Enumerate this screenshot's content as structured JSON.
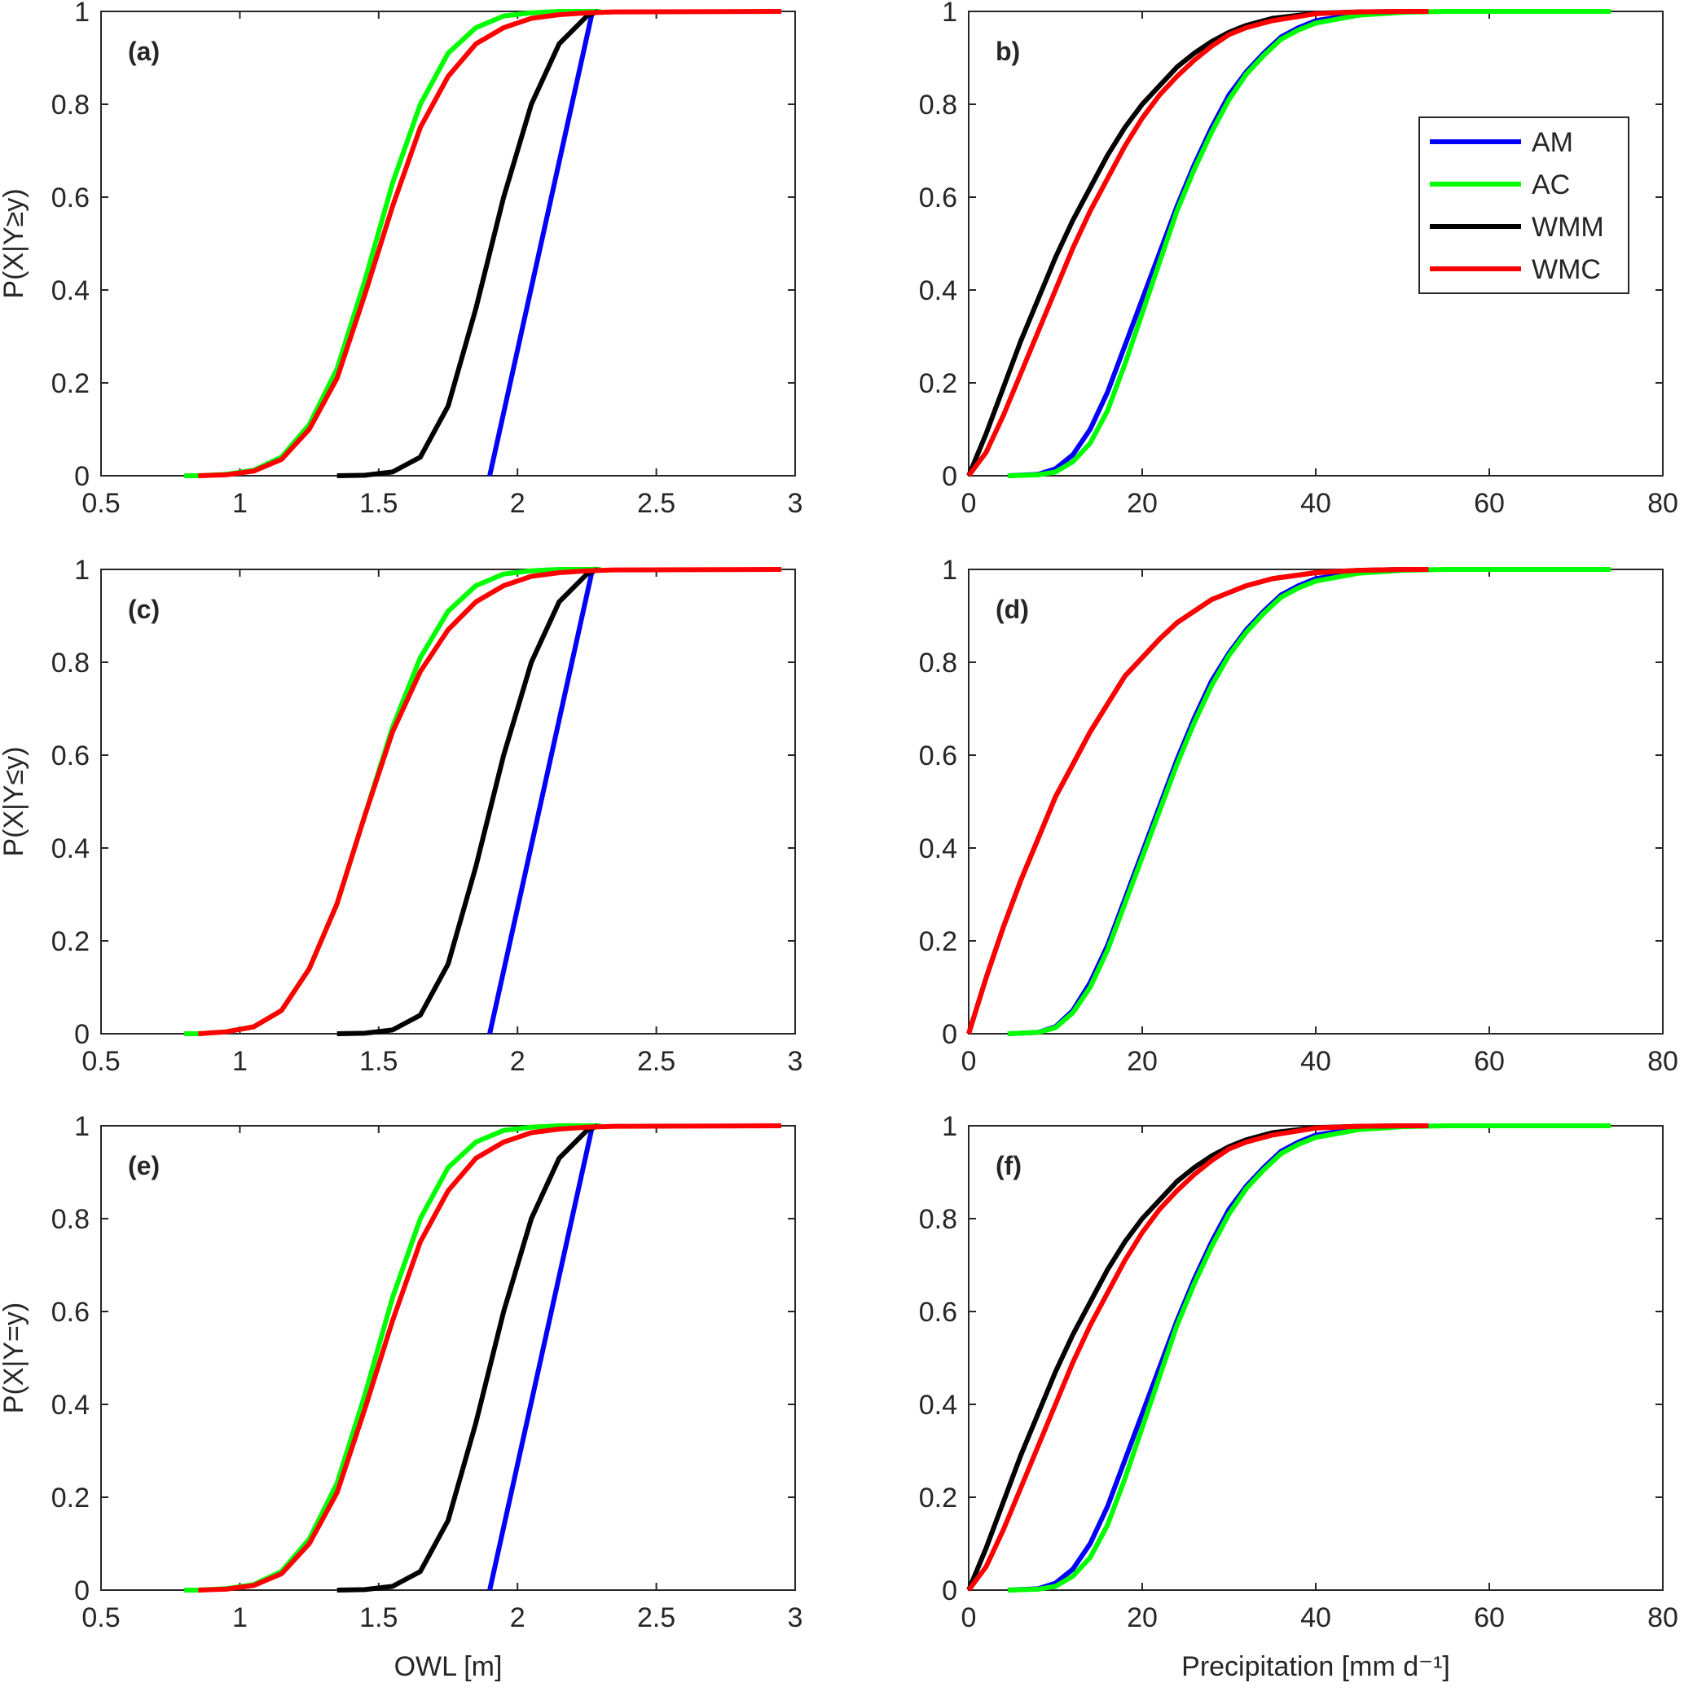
{
  "chart_data": [
    {
      "type": "line",
      "panel": "(a)",
      "ylabel": "P(X|Y≥y)",
      "xlabel": "",
      "xlim": [
        0.5,
        3
      ],
      "ylim": [
        0,
        1
      ],
      "xticks": [
        "0.5",
        "1",
        "1.5",
        "2",
        "2.5",
        "3"
      ],
      "yticks": [
        "0",
        "0.2",
        "0.4",
        "0.6",
        "0.8",
        "1"
      ],
      "series": [
        {
          "name": "AM",
          "color": "#0000ff",
          "x": [
            1.9,
            2.27
          ],
          "y": [
            0,
            1
          ]
        },
        {
          "name": "AC",
          "color": "#00ff00",
          "x": [
            0.8,
            0.85,
            0.95,
            1.05,
            1.15,
            1.25,
            1.35,
            1.45,
            1.55,
            1.65,
            1.75,
            1.85,
            1.95,
            2.05,
            2.15,
            2.3
          ],
          "y": [
            0,
            0,
            0.003,
            0.012,
            0.04,
            0.11,
            0.23,
            0.42,
            0.63,
            0.8,
            0.91,
            0.965,
            0.99,
            0.997,
            1,
            1
          ]
        },
        {
          "name": "WMM",
          "color": "#000000",
          "x": [
            1.35,
            1.45,
            1.55,
            1.65,
            1.75,
            1.85,
            1.95,
            2.05,
            2.15,
            2.25,
            2.29
          ],
          "y": [
            0,
            0.001,
            0.008,
            0.04,
            0.15,
            0.36,
            0.6,
            0.8,
            0.93,
            0.99,
            1
          ]
        },
        {
          "name": "WMC",
          "color": "#ff0000",
          "x": [
            0.85,
            0.95,
            1.05,
            1.15,
            1.25,
            1.35,
            1.45,
            1.55,
            1.65,
            1.75,
            1.85,
            1.95,
            2.05,
            2.15,
            2.25,
            2.35,
            2.95
          ],
          "y": [
            0,
            0.002,
            0.01,
            0.035,
            0.1,
            0.21,
            0.39,
            0.58,
            0.75,
            0.86,
            0.93,
            0.965,
            0.985,
            0.993,
            0.997,
            0.999,
            1
          ]
        }
      ]
    },
    {
      "type": "line",
      "panel": "b)",
      "ylabel": "",
      "xlabel": "",
      "xlim": [
        0,
        80
      ],
      "ylim": [
        0,
        1
      ],
      "xticks": [
        "0",
        "20",
        "40",
        "60",
        "80"
      ],
      "yticks": [
        "0",
        "0.2",
        "0.4",
        "0.6",
        "0.8",
        "1"
      ],
      "legend": {
        "position": "top-right",
        "entries": [
          "AM",
          "AC",
          "WMM",
          "WMC"
        ]
      },
      "series": [
        {
          "name": "AM",
          "color": "#0000ff",
          "x": [
            4.5,
            8,
            10,
            12,
            14,
            16,
            18,
            20,
            22,
            24,
            26,
            28,
            30,
            32,
            34,
            36,
            38,
            40,
            45,
            50,
            53
          ],
          "y": [
            0,
            0.003,
            0.015,
            0.045,
            0.1,
            0.18,
            0.28,
            0.38,
            0.48,
            0.58,
            0.67,
            0.75,
            0.82,
            0.87,
            0.91,
            0.945,
            0.965,
            0.98,
            0.995,
            0.999,
            1
          ]
        },
        {
          "name": "AC",
          "color": "#00ff00",
          "x": [
            4.5,
            8,
            10,
            12,
            14,
            16,
            18,
            20,
            22,
            24,
            26,
            28,
            30,
            32,
            34,
            36,
            38,
            40,
            45,
            50,
            55,
            74
          ],
          "y": [
            0,
            0.002,
            0.008,
            0.03,
            0.07,
            0.14,
            0.24,
            0.35,
            0.46,
            0.57,
            0.66,
            0.74,
            0.81,
            0.865,
            0.905,
            0.94,
            0.96,
            0.975,
            0.992,
            0.998,
            1,
            1
          ]
        },
        {
          "name": "WMM",
          "color": "#000000",
          "x": [
            0,
            2,
            4,
            6,
            8,
            10,
            12,
            14,
            16,
            18,
            20,
            22,
            24,
            26,
            28,
            30,
            32,
            35,
            40,
            45,
            50,
            53
          ],
          "y": [
            0,
            0.09,
            0.19,
            0.29,
            0.38,
            0.47,
            0.55,
            0.62,
            0.69,
            0.75,
            0.8,
            0.84,
            0.88,
            0.91,
            0.935,
            0.955,
            0.97,
            0.985,
            0.996,
            0.999,
            1,
            1
          ]
        },
        {
          "name": "WMC",
          "color": "#ff0000",
          "x": [
            0,
            2,
            4,
            6,
            8,
            10,
            12,
            14,
            16,
            18,
            20,
            22,
            24,
            26,
            28,
            30,
            32,
            35,
            40,
            45,
            50,
            53
          ],
          "y": [
            0,
            0.05,
            0.13,
            0.22,
            0.31,
            0.4,
            0.49,
            0.57,
            0.64,
            0.71,
            0.77,
            0.82,
            0.86,
            0.895,
            0.925,
            0.95,
            0.965,
            0.98,
            0.995,
            0.999,
            1,
            1
          ]
        }
      ]
    },
    {
      "type": "line",
      "panel": "(c)",
      "ylabel": "P(X|Y≤y)",
      "xlabel": "",
      "xlim": [
        0.5,
        3
      ],
      "ylim": [
        0,
        1
      ],
      "xticks": [
        "0.5",
        "1",
        "1.5",
        "2",
        "2.5",
        "3"
      ],
      "yticks": [
        "0",
        "0.2",
        "0.4",
        "0.6",
        "0.8",
        "1"
      ],
      "series": [
        {
          "name": "AM",
          "color": "#0000ff",
          "x": [
            1.9,
            2.27
          ],
          "y": [
            0,
            1
          ]
        },
        {
          "name": "AC",
          "color": "#00ff00",
          "x": [
            0.8,
            0.85,
            0.95,
            1.05,
            1.15,
            1.25,
            1.35,
            1.45,
            1.55,
            1.65,
            1.75,
            1.85,
            1.95,
            2.05,
            2.15,
            2.3
          ],
          "y": [
            0,
            0,
            0.004,
            0.015,
            0.05,
            0.14,
            0.28,
            0.47,
            0.66,
            0.81,
            0.91,
            0.965,
            0.99,
            0.997,
            1,
            1
          ]
        },
        {
          "name": "WMM",
          "color": "#000000",
          "x": [
            1.35,
            1.45,
            1.55,
            1.65,
            1.75,
            1.85,
            1.95,
            2.05,
            2.15,
            2.25,
            2.29
          ],
          "y": [
            0,
            0.001,
            0.008,
            0.04,
            0.15,
            0.36,
            0.6,
            0.8,
            0.93,
            0.99,
            1
          ]
        },
        {
          "name": "WMC",
          "color": "#ff0000",
          "x": [
            0.85,
            0.95,
            1.05,
            1.15,
            1.25,
            1.35,
            1.45,
            1.55,
            1.65,
            1.75,
            1.85,
            1.95,
            2.05,
            2.15,
            2.25,
            2.35,
            2.95
          ],
          "y": [
            0,
            0.004,
            0.015,
            0.05,
            0.14,
            0.28,
            0.47,
            0.65,
            0.78,
            0.87,
            0.93,
            0.965,
            0.985,
            0.993,
            0.997,
            0.999,
            1
          ]
        }
      ]
    },
    {
      "type": "line",
      "panel": "(d)",
      "ylabel": "",
      "xlabel": "",
      "xlim": [
        0,
        80
      ],
      "ylim": [
        0,
        1
      ],
      "xticks": [
        "0",
        "20",
        "40",
        "60",
        "80"
      ],
      "yticks": [
        "0",
        "0.2",
        "0.4",
        "0.6",
        "0.8",
        "1"
      ],
      "series": [
        {
          "name": "AM",
          "color": "#0000ff",
          "x": [
            4.5,
            8,
            10,
            12,
            14,
            16,
            18,
            20,
            22,
            24,
            26,
            28,
            30,
            32,
            34,
            36,
            38,
            40,
            45,
            50,
            53
          ],
          "y": [
            0,
            0.003,
            0.015,
            0.05,
            0.11,
            0.19,
            0.29,
            0.39,
            0.49,
            0.59,
            0.68,
            0.76,
            0.82,
            0.87,
            0.91,
            0.945,
            0.965,
            0.98,
            0.995,
            0.999,
            1
          ]
        },
        {
          "name": "AC",
          "color": "#00ff00",
          "x": [
            4.5,
            8,
            10,
            12,
            14,
            16,
            18,
            20,
            22,
            24,
            26,
            28,
            30,
            32,
            34,
            36,
            38,
            40,
            45,
            50,
            55,
            74
          ],
          "y": [
            0,
            0.003,
            0.013,
            0.045,
            0.1,
            0.18,
            0.28,
            0.38,
            0.48,
            0.58,
            0.67,
            0.75,
            0.815,
            0.865,
            0.905,
            0.94,
            0.96,
            0.975,
            0.992,
            0.998,
            1,
            1
          ]
        },
        {
          "name": "WMM",
          "color": "#000000",
          "x": [
            0,
            2,
            4,
            6,
            8,
            10,
            12,
            14,
            16,
            18,
            20,
            22,
            24,
            26,
            28,
            30,
            32,
            35,
            40,
            45,
            50,
            53
          ],
          "y": [
            0,
            0.12,
            0.23,
            0.33,
            0.42,
            0.51,
            0.58,
            0.65,
            0.71,
            0.77,
            0.81,
            0.85,
            0.885,
            0.91,
            0.935,
            0.95,
            0.965,
            0.98,
            0.993,
            0.998,
            1,
            1
          ]
        },
        {
          "name": "WMC",
          "color": "#ff0000",
          "x": [
            0,
            2,
            4,
            6,
            8,
            10,
            12,
            14,
            16,
            18,
            20,
            22,
            24,
            26,
            28,
            30,
            32,
            35,
            40,
            45,
            50,
            53
          ],
          "y": [
            0,
            0.12,
            0.23,
            0.33,
            0.42,
            0.51,
            0.58,
            0.65,
            0.71,
            0.77,
            0.81,
            0.85,
            0.885,
            0.91,
            0.935,
            0.95,
            0.965,
            0.98,
            0.993,
            0.998,
            1,
            1
          ]
        }
      ]
    },
    {
      "type": "line",
      "panel": "(e)",
      "ylabel": "P(X|Y=y)",
      "xlabel": "OWL [m]",
      "xlim": [
        0.5,
        3
      ],
      "ylim": [
        0,
        1
      ],
      "xticks": [
        "0.5",
        "1",
        "1.5",
        "2",
        "2.5",
        "3"
      ],
      "yticks": [
        "0",
        "0.2",
        "0.4",
        "0.6",
        "0.8",
        "1"
      ],
      "series": [
        {
          "name": "AM",
          "color": "#0000ff",
          "x": [
            1.9,
            2.27
          ],
          "y": [
            0,
            1
          ]
        },
        {
          "name": "AC",
          "color": "#00ff00",
          "x": [
            0.8,
            0.85,
            0.95,
            1.05,
            1.15,
            1.25,
            1.35,
            1.45,
            1.55,
            1.65,
            1.75,
            1.85,
            1.95,
            2.05,
            2.15,
            2.3
          ],
          "y": [
            0,
            0,
            0.003,
            0.012,
            0.04,
            0.11,
            0.23,
            0.42,
            0.63,
            0.8,
            0.91,
            0.965,
            0.99,
            0.997,
            1,
            1
          ]
        },
        {
          "name": "WMM",
          "color": "#000000",
          "x": [
            1.35,
            1.45,
            1.55,
            1.65,
            1.75,
            1.85,
            1.95,
            2.05,
            2.15,
            2.25,
            2.29
          ],
          "y": [
            0,
            0.001,
            0.008,
            0.04,
            0.15,
            0.36,
            0.6,
            0.8,
            0.93,
            0.99,
            1
          ]
        },
        {
          "name": "WMC",
          "color": "#ff0000",
          "x": [
            0.85,
            0.95,
            1.05,
            1.15,
            1.25,
            1.35,
            1.45,
            1.55,
            1.65,
            1.75,
            1.85,
            1.95,
            2.05,
            2.15,
            2.25,
            2.35,
            2.95
          ],
          "y": [
            0,
            0.002,
            0.01,
            0.035,
            0.1,
            0.21,
            0.39,
            0.58,
            0.75,
            0.86,
            0.93,
            0.965,
            0.985,
            0.993,
            0.997,
            0.999,
            1
          ]
        }
      ]
    },
    {
      "type": "line",
      "panel": "(f)",
      "ylabel": "",
      "xlabel": "Precipitation [mm d⁻¹]",
      "xlim": [
        0,
        80
      ],
      "ylim": [
        0,
        1
      ],
      "xticks": [
        "0",
        "20",
        "40",
        "60",
        "80"
      ],
      "yticks": [
        "0",
        "0.2",
        "0.4",
        "0.6",
        "0.8",
        "1"
      ],
      "series": [
        {
          "name": "AM",
          "color": "#0000ff",
          "x": [
            4.5,
            8,
            10,
            12,
            14,
            16,
            18,
            20,
            22,
            24,
            26,
            28,
            30,
            32,
            34,
            36,
            38,
            40,
            45,
            50,
            53
          ],
          "y": [
            0,
            0.003,
            0.015,
            0.045,
            0.1,
            0.18,
            0.28,
            0.38,
            0.48,
            0.58,
            0.67,
            0.75,
            0.82,
            0.87,
            0.91,
            0.945,
            0.965,
            0.98,
            0.995,
            0.999,
            1
          ]
        },
        {
          "name": "AC",
          "color": "#00ff00",
          "x": [
            4.5,
            8,
            10,
            12,
            14,
            16,
            18,
            20,
            22,
            24,
            26,
            28,
            30,
            32,
            34,
            36,
            38,
            40,
            45,
            50,
            55,
            74
          ],
          "y": [
            0,
            0.002,
            0.008,
            0.03,
            0.07,
            0.14,
            0.24,
            0.35,
            0.46,
            0.57,
            0.66,
            0.74,
            0.81,
            0.865,
            0.905,
            0.94,
            0.96,
            0.975,
            0.992,
            0.998,
            1,
            1
          ]
        },
        {
          "name": "WMM",
          "color": "#000000",
          "x": [
            0,
            2,
            4,
            6,
            8,
            10,
            12,
            14,
            16,
            18,
            20,
            22,
            24,
            26,
            28,
            30,
            32,
            35,
            40,
            45,
            50,
            53
          ],
          "y": [
            0,
            0.09,
            0.19,
            0.29,
            0.38,
            0.47,
            0.55,
            0.62,
            0.69,
            0.75,
            0.8,
            0.84,
            0.88,
            0.91,
            0.935,
            0.955,
            0.97,
            0.985,
            0.996,
            0.999,
            1,
            1
          ]
        },
        {
          "name": "WMC",
          "color": "#ff0000",
          "x": [
            0,
            2,
            4,
            6,
            8,
            10,
            12,
            14,
            16,
            18,
            20,
            22,
            24,
            26,
            28,
            30,
            32,
            35,
            40,
            45,
            50,
            53
          ],
          "y": [
            0,
            0.05,
            0.13,
            0.22,
            0.31,
            0.4,
            0.49,
            0.57,
            0.64,
            0.71,
            0.77,
            0.82,
            0.86,
            0.895,
            0.925,
            0.95,
            0.965,
            0.98,
            0.995,
            0.999,
            1,
            1
          ]
        }
      ]
    }
  ]
}
